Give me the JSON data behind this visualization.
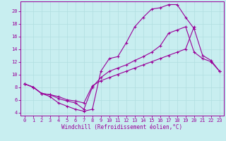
{
  "xlabel": "Windchill (Refroidissement éolien,°C)",
  "bg_color": "#c8eef0",
  "grid_color": "#b0dde0",
  "line_color": "#990099",
  "xlim": [
    -0.5,
    23.5
  ],
  "ylim": [
    3.5,
    21.5
  ],
  "xticks": [
    0,
    1,
    2,
    3,
    4,
    5,
    6,
    7,
    8,
    9,
    10,
    11,
    12,
    13,
    14,
    15,
    16,
    17,
    18,
    19,
    20,
    21,
    22,
    23
  ],
  "yticks": [
    4,
    6,
    8,
    10,
    12,
    14,
    16,
    18,
    20
  ],
  "series_x": [
    [
      0,
      1,
      2,
      3,
      4,
      5,
      6,
      7,
      8,
      9,
      10,
      11,
      12,
      13,
      14,
      15,
      16,
      17,
      18,
      19,
      20,
      21,
      22,
      23
    ],
    [
      0,
      1,
      2,
      3,
      4,
      5,
      6,
      7,
      8,
      9,
      10,
      11,
      12,
      13,
      14,
      15,
      16,
      17,
      18,
      19,
      20,
      21,
      22,
      23
    ],
    [
      0,
      1,
      2,
      3,
      4,
      5,
      6,
      7,
      8,
      9,
      10,
      11,
      12,
      13,
      14,
      15,
      16,
      17,
      18,
      19,
      20
    ]
  ],
  "series_y": [
    [
      8.5,
      8.0,
      7.0,
      6.5,
      5.5,
      5.0,
      4.5,
      4.2,
      4.5,
      10.5,
      12.5,
      12.8,
      15.0,
      17.5,
      19.0,
      20.3,
      20.5,
      21.0,
      21.0,
      19.0,
      17.2,
      13.0,
      12.2,
      10.5
    ],
    [
      8.5,
      8.0,
      7.0,
      6.8,
      6.2,
      5.8,
      5.5,
      4.5,
      8.0,
      9.5,
      10.5,
      11.0,
      11.5,
      12.2,
      12.8,
      13.5,
      14.5,
      16.5,
      17.0,
      17.5,
      13.5,
      12.5,
      12.0,
      10.5
    ],
    [
      8.5,
      8.0,
      7.0,
      6.8,
      6.5,
      6.0,
      5.8,
      5.5,
      8.2,
      9.0,
      9.5,
      10.0,
      10.5,
      11.0,
      11.5,
      12.0,
      12.5,
      13.0,
      13.5,
      14.0,
      17.5
    ]
  ]
}
